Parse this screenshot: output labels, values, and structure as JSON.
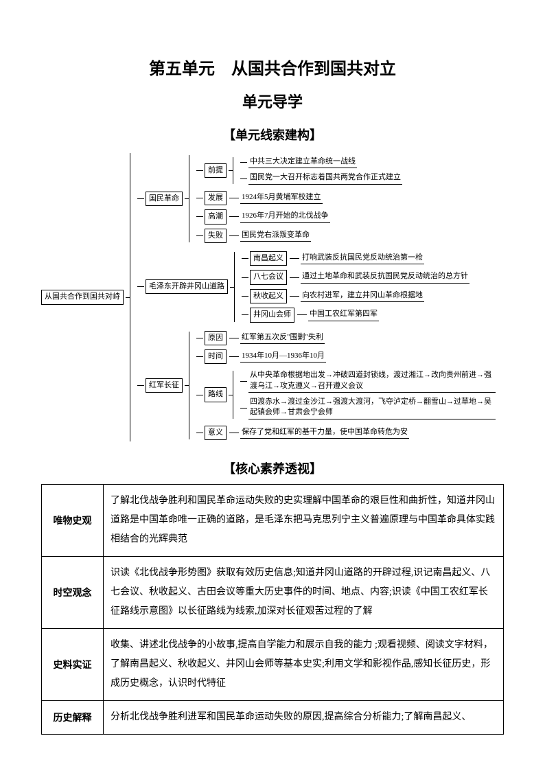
{
  "header": {
    "main_title": "第五单元　从国共合作到国共对立",
    "sub_title": "单元导学",
    "section1": "【单元线索建构】",
    "section2": "【核心素养透视】"
  },
  "tree": {
    "root": "从国共合作到国共对峙",
    "branches": [
      {
        "label": "国民革命",
        "children": [
          {
            "k": "前提",
            "v": [
              "中共三大决定建立革命统一战线",
              "国民党一大召开标志着国共两党合作正式建立"
            ]
          },
          {
            "k": "发展",
            "v": [
              "1924年5月黄埔军校建立"
            ]
          },
          {
            "k": "高潮",
            "v": [
              "1926年7月开始的北伐战争"
            ]
          },
          {
            "k": "失败",
            "v": [
              "国民党右派叛变革命"
            ]
          }
        ]
      },
      {
        "label": "毛泽东开辟井冈山道路",
        "children": [
          {
            "k": "南昌起义",
            "v": [
              "打响武装反抗国民党反动统治第一枪"
            ]
          },
          {
            "k": "八七会议",
            "v": [
              "通过土地革命和武装反抗国民党反动统治的总方针"
            ]
          },
          {
            "k": "秋收起义",
            "v": [
              "向农村进军，建立井冈山革命根据地"
            ]
          },
          {
            "k": "井冈山会师",
            "v": [
              "中国工农红军第四军"
            ]
          }
        ]
      },
      {
        "label": "红军长征",
        "children": [
          {
            "k": "原因",
            "v": [
              "红军第五次反\"围剿\"失利"
            ]
          },
          {
            "k": "时间",
            "v": [
              "1934年10月—1936年10月"
            ]
          },
          {
            "k": "路线",
            "v": [
              "从中央革命根据地出发→冲破四道封锁线，渡过湘江→改向贵州前进→强渡乌江→攻克遵义→召开遵义会议",
              "四渡赤水→渡过金沙江→强渡大渡河，飞夺泸定桥→翻雪山→过草地→吴起镇会师→甘肃会宁会师"
            ]
          },
          {
            "k": "意义",
            "v": [
              "保存了党和红军的基干力量，使中国革命转危为安"
            ]
          }
        ]
      }
    ]
  },
  "table": {
    "rows": [
      {
        "h": "唯物史观",
        "t": "了解北伐战争胜利和国民革命运动失败的史实理解中国革命的艰巨性和曲折性，知道井冈山道路是中国革命唯一正确的道路，是毛泽东把马克思列宁主义普遍原理与中国革命具体实践相结合的光辉典范"
      },
      {
        "h": "时空观念",
        "t": "识读《北伐战争形势图》获取有效历史信息;知道井冈山道路的开辟过程,识记南昌起义、八七会议、秋收起义、古田会议等重大历史事件的时间、地点、内容;识读《中国工农红军长征路线示意图》以长征路线为线索,加深对长征艰苦过程的了解"
      },
      {
        "h": "史料实证",
        "t": "收集、讲述北伐战争的小故事,提高自学能力和展示自我的能力 ;观看视频、阅读文字材料，了解南昌起义、秋收起义、井冈山会师等基本史实;利用文学和影视作品,感知长征历史，形成历史概念，认识时代特征"
      },
      {
        "h": "历史解释",
        "t": "分析北伐战争胜利进军和国民革命运动失败的原因,提高综合分析能力;了解南昌起义、"
      }
    ]
  }
}
